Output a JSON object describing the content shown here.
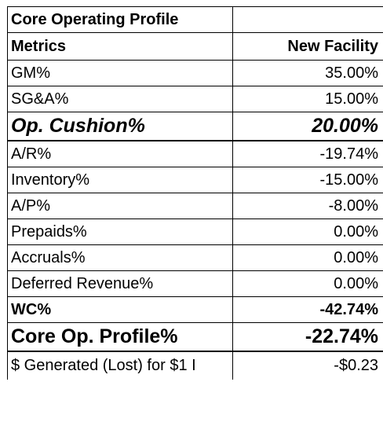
{
  "title": "Core Operating Profile",
  "header": {
    "metric_label": "Metrics",
    "value_label": "New Facility"
  },
  "rows": [
    {
      "label": "GM%",
      "value": "35.00%"
    },
    {
      "label": "SG&A%",
      "value": "15.00%"
    },
    {
      "label": "Op. Cushion%",
      "value": "20.00%"
    },
    {
      "label": "A/R%",
      "value": "-19.74%"
    },
    {
      "label": "Inventory%",
      "value": "-15.00%"
    },
    {
      "label": "A/P%",
      "value": "-8.00%"
    },
    {
      "label": "Prepaids%",
      "value": "0.00%"
    },
    {
      "label": "Accruals%",
      "value": "0.00%"
    },
    {
      "label": "Deferred Revenue%",
      "value": "0.00%"
    },
    {
      "label": "WC%",
      "value": "-42.74%"
    },
    {
      "label": "Core Op. Profile%",
      "value": "-22.74%"
    },
    {
      "label": "$ Generated (Lost) for $1 I",
      "value": "-$0.23"
    }
  ]
}
